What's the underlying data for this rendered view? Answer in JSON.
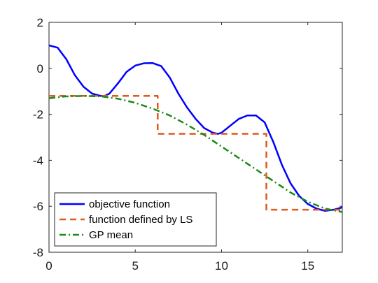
{
  "chart_data": {
    "type": "line",
    "xlim": [
      0,
      17
    ],
    "ylim": [
      -8,
      2
    ],
    "x_ticks": [
      0,
      5,
      10,
      15
    ],
    "x_tick_labels": [
      "0",
      "5",
      "10",
      "15"
    ],
    "y_ticks": [
      -8,
      -6,
      -4,
      -2,
      0,
      2
    ],
    "y_tick_labels": [
      "-8",
      "-6",
      "-4",
      "-2",
      "0",
      "2"
    ],
    "grid": false,
    "legend_position": "bottom-left",
    "series": [
      {
        "name": "objective function",
        "style": "solid",
        "color": "#0000ff",
        "x": [
          0,
          0.5,
          1,
          1.5,
          2,
          2.5,
          3,
          3.2,
          3.5,
          4,
          4.5,
          5,
          5.5,
          6,
          6.5,
          7,
          7.5,
          8,
          8.5,
          9,
          9.5,
          9.8,
          10,
          10.5,
          11,
          11.5,
          12,
          12.5,
          13,
          13.5,
          14,
          14.5,
          15,
          15.5,
          16,
          16.5,
          17
        ],
        "y": [
          1.0,
          0.9,
          0.4,
          -0.3,
          -0.8,
          -1.1,
          -1.2,
          -1.21,
          -1.1,
          -0.65,
          -0.15,
          0.12,
          0.22,
          0.23,
          0.1,
          -0.4,
          -1.1,
          -1.7,
          -2.2,
          -2.6,
          -2.8,
          -2.85,
          -2.8,
          -2.5,
          -2.2,
          -2.05,
          -2.05,
          -2.35,
          -3.2,
          -4.2,
          -5.0,
          -5.55,
          -5.9,
          -6.1,
          -6.2,
          -6.15,
          -6.05
        ]
      },
      {
        "name": "function defined by LS",
        "style": "dashed",
        "color": "#e05a1a",
        "x": [
          0,
          6.3,
          6.3,
          12.6,
          12.6,
          17
        ],
        "y": [
          -1.2,
          -1.2,
          -2.85,
          -2.85,
          -6.15,
          -6.15
        ]
      },
      {
        "name": "GP mean",
        "style": "dashdot",
        "color": "#1a8a1a",
        "x": [
          0,
          1,
          2,
          3,
          4,
          5,
          6,
          7,
          8,
          9,
          10,
          11,
          12,
          13,
          14,
          15,
          16,
          17
        ],
        "y": [
          -1.3,
          -1.22,
          -1.2,
          -1.22,
          -1.32,
          -1.5,
          -1.75,
          -2.05,
          -2.45,
          -2.9,
          -3.4,
          -3.9,
          -4.4,
          -4.9,
          -5.4,
          -5.8,
          -6.1,
          -6.25
        ]
      }
    ]
  }
}
